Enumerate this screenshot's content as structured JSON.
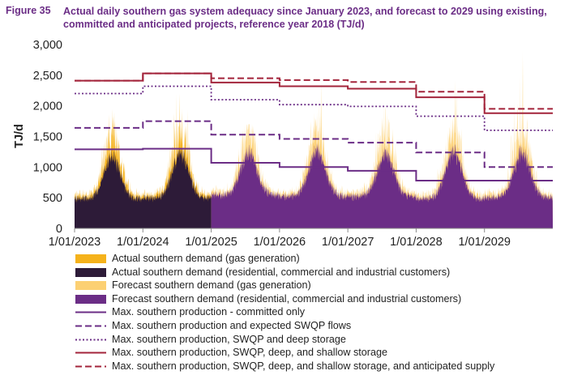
{
  "figure": {
    "label": "Figure 35",
    "title": "Actual daily southern gas system adequacy since January 2023, and forecast to 2029 using existing, committed and anticipated projects, reference year 2018 (TJ/d)"
  },
  "chart_data": {
    "type": "area",
    "ylabel": "TJ/d",
    "ylim": [
      0,
      3000
    ],
    "yticks": [
      "0",
      "500",
      "1,000",
      "1,500",
      "2,000",
      "2,500",
      "3,000"
    ],
    "xticks": [
      "1/01/2023",
      "1/01/2024",
      "1/01/2025",
      "1/01/2026",
      "1/01/2027",
      "1/01/2028",
      "1/01/2029"
    ],
    "x_start_year": 2023,
    "x_end_year": 2030,
    "forecast_start_year": 2025,
    "demand_series": [
      {
        "name": "Actual southern demand (gas generation)",
        "color": "#f5b21b",
        "type": "area"
      },
      {
        "name": "Actual southern demand (residential, commercial and industrial customers)",
        "color": "#2d1b38",
        "type": "area"
      },
      {
        "name": "Forecast southern demand (gas generation)",
        "color": "#fcd073",
        "type": "area"
      },
      {
        "name": "Forecast southern demand (residential, commercial and industrial customers)",
        "color": "#6b2d86",
        "type": "area"
      }
    ],
    "demand_profile": {
      "years": [
        2023,
        2024,
        2025,
        2026,
        2027,
        2028,
        2029
      ],
      "annual_base": [
        [
          500,
          1200
        ],
        [
          510,
          1260
        ],
        [
          560,
          1280
        ],
        [
          540,
          1300
        ],
        [
          540,
          1250
        ],
        [
          500,
          1300
        ],
        [
          520,
          1280
        ]
      ],
      "gas_generation_peak": [
        2050,
        2200,
        1700,
        2400,
        2100,
        2750,
        2900
      ]
    },
    "capacity_series": [
      {
        "name": "Max. southern production - committed only",
        "color": "#6b2d86",
        "style": "solid",
        "x": [
          2023,
          2024,
          2025,
          2026,
          2027,
          2028,
          2029,
          2030
        ],
        "y": [
          1290,
          1300,
          1070,
          1000,
          940,
          780,
          780,
          780
        ]
      },
      {
        "name": "Max. southern production and expected SWQP flows",
        "color": "#6b2d86",
        "style": "dashed",
        "x": [
          2023,
          2024,
          2025,
          2026,
          2027,
          2028,
          2029,
          2030
        ],
        "y": [
          1640,
          1750,
          1530,
          1460,
          1400,
          1240,
          1000,
          1000
        ]
      },
      {
        "name": "Max. southern production, SWQP and deep storage",
        "color": "#6b2d86",
        "style": "dotted",
        "x": [
          2023,
          2024,
          2025,
          2026,
          2027,
          2028,
          2029,
          2030
        ],
        "y": [
          2200,
          2320,
          2100,
          2020,
          1990,
          1830,
          1600,
          1600
        ]
      },
      {
        "name": "Max. southern production, SWQP, deep, and shallow storage",
        "color": "#a3243b",
        "style": "solid",
        "x": [
          2023,
          2024,
          2025,
          2026,
          2027,
          2028,
          2029,
          2030
        ],
        "y": [
          2410,
          2530,
          2380,
          2320,
          2280,
          2140,
          1880,
          1880
        ]
      },
      {
        "name": "Max. southern production, SWQP, deep, and shallow storage, and anticipated supply",
        "color": "#a3243b",
        "style": "dashed",
        "x": [
          2023,
          2024,
          2025,
          2026,
          2027,
          2028,
          2029,
          2030
        ],
        "y": [
          2410,
          2530,
          2450,
          2420,
          2390,
          2230,
          1950,
          1950
        ]
      }
    ],
    "grid": false,
    "legend_position": "bottom"
  }
}
